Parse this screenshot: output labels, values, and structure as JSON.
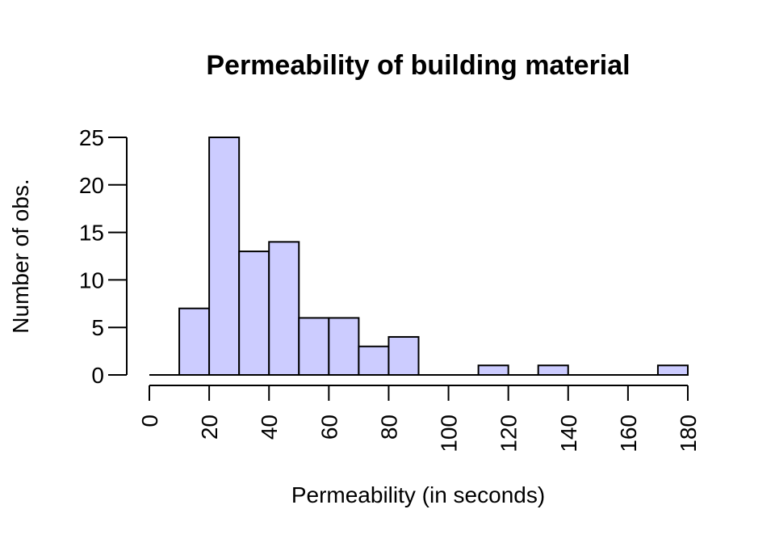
{
  "chart_data": {
    "type": "bar",
    "title": "Permeability of building material",
    "xlabel": "Permeability (in seconds)",
    "ylabel": "Number of obs.",
    "bin_edges": [
      0,
      10,
      20,
      30,
      40,
      50,
      60,
      70,
      80,
      90,
      100,
      110,
      120,
      130,
      140,
      150,
      160,
      170,
      180
    ],
    "values": [
      0,
      7,
      25,
      13,
      14,
      6,
      6,
      3,
      4,
      0,
      0,
      1,
      0,
      1,
      0,
      0,
      0,
      1
    ],
    "xlim": [
      0,
      180
    ],
    "ylim": [
      0,
      25
    ],
    "x_ticks": [
      0,
      20,
      40,
      60,
      80,
      100,
      120,
      140,
      160,
      180
    ],
    "y_ticks": [
      0,
      5,
      10,
      15,
      20,
      25
    ],
    "x_tick_labels": [
      "0",
      "20",
      "40",
      "60",
      "80",
      "100",
      "120",
      "140",
      "160",
      "180"
    ],
    "y_tick_labels": [
      "0",
      "5",
      "10",
      "15",
      "20",
      "25"
    ],
    "grid": false,
    "bar_fill": "#ccccff",
    "bar_stroke": "#000000"
  }
}
